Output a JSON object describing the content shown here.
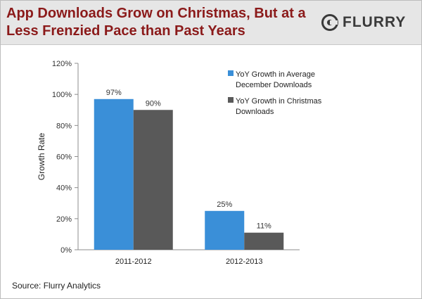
{
  "header": {
    "title": "App Downloads Grow on Christmas, But at a Less Frenzied Pace than Past Years",
    "logo_text": "FLURRY"
  },
  "footer": {
    "source": "Source: Flurry Analytics"
  },
  "colors": {
    "series_blue": "#3a8fd8",
    "series_gray": "#595959",
    "title": "#8b1a1a",
    "header_bg": "#e6e6e6"
  },
  "chart_data": {
    "type": "bar",
    "title": "App Downloads Grow on Christmas, But at a Less Frenzied Pace than Past Years",
    "xlabel": "",
    "ylabel": "Growth Rate",
    "categories": [
      "2011-2012",
      "2012-2013"
    ],
    "series": [
      {
        "name": "YoY Growth in Average December Downloads",
        "legend_lines": [
          "YoY Growth in Average",
          "December Downloads"
        ],
        "values": [
          97,
          25
        ],
        "labels": [
          "97%",
          "25%"
        ]
      },
      {
        "name": "YoY Growth in Christmas Downloads",
        "legend_lines": [
          "YoY Growth in Christmas",
          "Downloads"
        ],
        "values": [
          90,
          11
        ],
        "labels": [
          "90%",
          "11%"
        ]
      }
    ],
    "ylim": [
      0,
      120
    ],
    "yticks": [
      0,
      20,
      40,
      60,
      80,
      100,
      120
    ],
    "ytick_labels": [
      "0%",
      "20%",
      "40%",
      "60%",
      "80%",
      "100%",
      "120%"
    ],
    "grid": false,
    "legend_position": "top-right"
  }
}
